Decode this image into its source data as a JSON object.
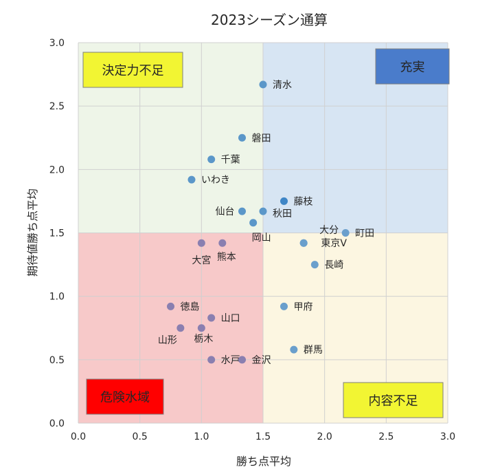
{
  "chart_data": {
    "type": "scatter",
    "title": "2023シーズン通算",
    "xlabel": "勝ち点平均",
    "ylabel": "期待値勝ち点平均",
    "xlim": [
      0,
      3.0
    ],
    "ylim": [
      0,
      3.0
    ],
    "x_ticks": [
      "0.0",
      "0.5",
      "1.0",
      "1.5",
      "2.0",
      "2.5",
      "3.0"
    ],
    "y_ticks": [
      "0.0",
      "0.5",
      "1.0",
      "1.5",
      "2.0",
      "2.5",
      "3.0"
    ],
    "grid": true,
    "quadrants": {
      "split_x": 1.5,
      "split_y": 1.5,
      "top_left": {
        "label": "決定力不足",
        "color": "#eef5e8",
        "box_color": "#f2f533"
      },
      "top_right": {
        "label": "充実",
        "color": "#d7e5f3",
        "box_color": "#4a7ccb",
        "text_color": "#ffffff"
      },
      "bottom_left": {
        "label": "危険水域",
        "color": "#f7c9c9",
        "box_color": "#ff0000"
      },
      "bottom_right": {
        "label": "内容不足",
        "color": "#fcf6e1",
        "box_color": "#f2f533"
      }
    },
    "points": [
      {
        "label": "清水",
        "x": 1.5,
        "y": 2.67,
        "color": "#5b97c9"
      },
      {
        "label": "磐田",
        "x": 1.33,
        "y": 2.25,
        "color": "#5b97c9"
      },
      {
        "label": "千葉",
        "x": 1.08,
        "y": 2.08,
        "color": "#5b97c9"
      },
      {
        "label": "いわき",
        "x": 0.92,
        "y": 1.92,
        "color": "#5b97c9"
      },
      {
        "label": "藤枝",
        "x": 1.67,
        "y": 1.75,
        "color": "#3f86c6"
      },
      {
        "label": "仙台",
        "x": 1.33,
        "y": 1.67,
        "color": "#5b97c9"
      },
      {
        "label": "秋田",
        "x": 1.5,
        "y": 1.67,
        "color": "#5b97c9"
      },
      {
        "label": "岡山",
        "x": 1.42,
        "y": 1.58,
        "color": "#5b97c9"
      },
      {
        "label": "町田",
        "x": 2.17,
        "y": 1.5,
        "color": "#6a9fcc"
      },
      {
        "label": "大分",
        "x": 1.83,
        "y": 1.42,
        "color": "#6a9fcc"
      },
      {
        "label": "東京V",
        "x": 1.83,
        "y": 1.42,
        "color": "#6a9fcc"
      },
      {
        "label": "大宮",
        "x": 1.0,
        "y": 1.42,
        "color": "#8a7fb0"
      },
      {
        "label": "熊本",
        "x": 1.17,
        "y": 1.42,
        "color": "#8a7fb0"
      },
      {
        "label": "長崎",
        "x": 1.92,
        "y": 1.25,
        "color": "#6a9fcc"
      },
      {
        "label": "徳島",
        "x": 0.75,
        "y": 0.92,
        "color": "#8a7fb0"
      },
      {
        "label": "甲府",
        "x": 1.67,
        "y": 0.92,
        "color": "#6a9fcc"
      },
      {
        "label": "山口",
        "x": 1.08,
        "y": 0.83,
        "color": "#8a7fb0"
      },
      {
        "label": "山形",
        "x": 0.83,
        "y": 0.75,
        "color": "#8a7fb0"
      },
      {
        "label": "栃木",
        "x": 1.0,
        "y": 0.75,
        "color": "#8a7fb0"
      },
      {
        "label": "群馬",
        "x": 1.75,
        "y": 0.58,
        "color": "#6a9fcc"
      },
      {
        "label": "水戸",
        "x": 1.08,
        "y": 0.5,
        "color": "#8a7fb0"
      },
      {
        "label": "金沢",
        "x": 1.33,
        "y": 0.5,
        "color": "#8a7fb0"
      }
    ]
  }
}
